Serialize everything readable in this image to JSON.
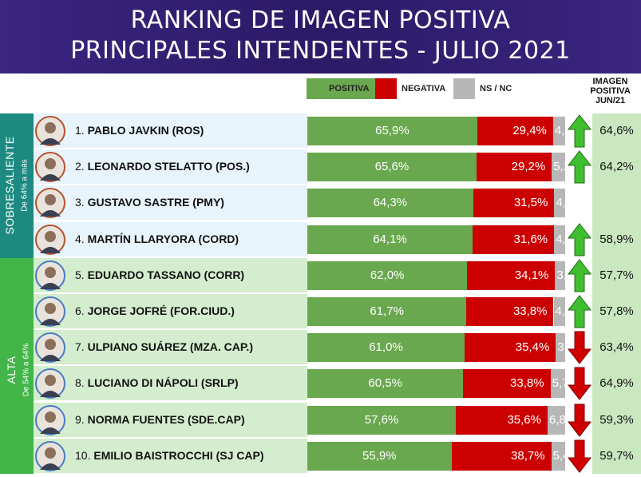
{
  "header": {
    "title_line1": "RANKING DE IMAGEN POSITIVA",
    "title_line2": "PRINCIPALES INTENDENTES - JULIO 2021"
  },
  "legend": {
    "positiva": "POSITIVA",
    "negativa": "NEGATIVA",
    "nsnc": "NS / NC"
  },
  "prev_header": {
    "line1": "IMAGEN",
    "line2": "POSITIVA",
    "line3": "JUN/21"
  },
  "groups": {
    "sobresaliente": {
      "label": "SOBRESALIENTE",
      "sub": "De 64% a más"
    },
    "alta": {
      "label": "ALTA",
      "sub": "De 54% a 64%"
    }
  },
  "colors": {
    "positiva": "#6aa84f",
    "negativa": "#cc0000",
    "nsnc": "#b7b7b7",
    "header_bg": "#2b1a66",
    "sobresaliente_band": "#1c8a80",
    "sobresaliente_row": "#e8f4fb",
    "alta_band": "#43b649",
    "alta_row": "#d4edce",
    "arrow_up": "#3fbf2f",
    "arrow_down": "#d10000"
  },
  "chart_data": {
    "type": "bar",
    "stacked": true,
    "orientation": "horizontal",
    "unit": "%",
    "series_names": [
      "POSITIVA",
      "NEGATIVA",
      "NS / NC"
    ],
    "rows": [
      {
        "rank": "1.",
        "name": "PABLO JAVKIN (ROS)",
        "group": "sobresaliente",
        "positiva": 65.9,
        "negativa": 29.4,
        "nsnc": 4.7,
        "pos_label": "65,9%",
        "neg_label": "29,4%",
        "ns_label": "4,7%",
        "trend": "up",
        "prev": "64,6%"
      },
      {
        "rank": "2.",
        "name": "LEONARDO STELATTO (POS.)",
        "group": "sobresaliente",
        "positiva": 65.6,
        "negativa": 29.2,
        "nsnc": 5.2,
        "pos_label": "65,6%",
        "neg_label": "29,2%",
        "ns_label": "5,2%",
        "trend": "up",
        "prev": "64,2%"
      },
      {
        "rank": "3.",
        "name": "GUSTAVO SASTRE (PMY)",
        "group": "sobresaliente",
        "positiva": 64.3,
        "negativa": 31.5,
        "nsnc": 4.2,
        "pos_label": "64,3%",
        "neg_label": "31,5%",
        "ns_label": "4,2%",
        "trend": "none",
        "prev": ""
      },
      {
        "rank": "4.",
        "name": "MARTÍN LLARYORA (CORD)",
        "group": "sobresaliente",
        "positiva": 64.1,
        "negativa": 31.6,
        "nsnc": 4.3,
        "pos_label": "64,1%",
        "neg_label": "31,6%",
        "ns_label": "4,3%",
        "trend": "up",
        "prev": "58,9%"
      },
      {
        "rank": "5.",
        "name": "EDUARDO TASSANO (CORR)",
        "group": "alta",
        "positiva": 62.0,
        "negativa": 34.1,
        "nsnc": 3.9,
        "pos_label": "62,0%",
        "neg_label": "34,1%",
        "ns_label": "3,9%",
        "trend": "up",
        "prev": "57,7%"
      },
      {
        "rank": "6.",
        "name": "JORGE JOFRÉ (FOR.CIUD.)",
        "group": "alta",
        "positiva": 61.7,
        "negativa": 33.8,
        "nsnc": 4.5,
        "pos_label": "61,7%",
        "neg_label": "33,8%",
        "ns_label": "4,5%",
        "trend": "up",
        "prev": "57,8%"
      },
      {
        "rank": "7.",
        "name": "ULPIANO SUÁREZ (MZA. CAP.)",
        "group": "alta",
        "positiva": 61.0,
        "negativa": 35.4,
        "nsnc": 3.6,
        "pos_label": "61,0%",
        "neg_label": "35,4%",
        "ns_label": "3,6%",
        "trend": "down",
        "prev": "63,4%"
      },
      {
        "rank": "8.",
        "name": "LUCIANO DI NÁPOLI (SRLP)",
        "group": "alta",
        "positiva": 60.5,
        "negativa": 33.8,
        "nsnc": 5.7,
        "pos_label": "60,5%",
        "neg_label": "33,8%",
        "ns_label": "5,7%",
        "trend": "down",
        "prev": "64,9%"
      },
      {
        "rank": "9.",
        "name": "NORMA FUENTES (SDE.CAP)",
        "group": "alta",
        "positiva": 57.6,
        "negativa": 35.6,
        "nsnc": 6.8,
        "pos_label": "57,6%",
        "neg_label": "35,6%",
        "ns_label": "6,8%",
        "trend": "down",
        "prev": "59,3%"
      },
      {
        "rank": "10.",
        "name": "EMILIO BAISTROCCHI (SJ CAP)",
        "group": "alta",
        "positiva": 55.9,
        "negativa": 38.7,
        "nsnc": 5.4,
        "pos_label": "55,9%",
        "neg_label": "38,7%",
        "ns_label": "5,4%",
        "trend": "down",
        "prev": "59,7%"
      }
    ]
  }
}
